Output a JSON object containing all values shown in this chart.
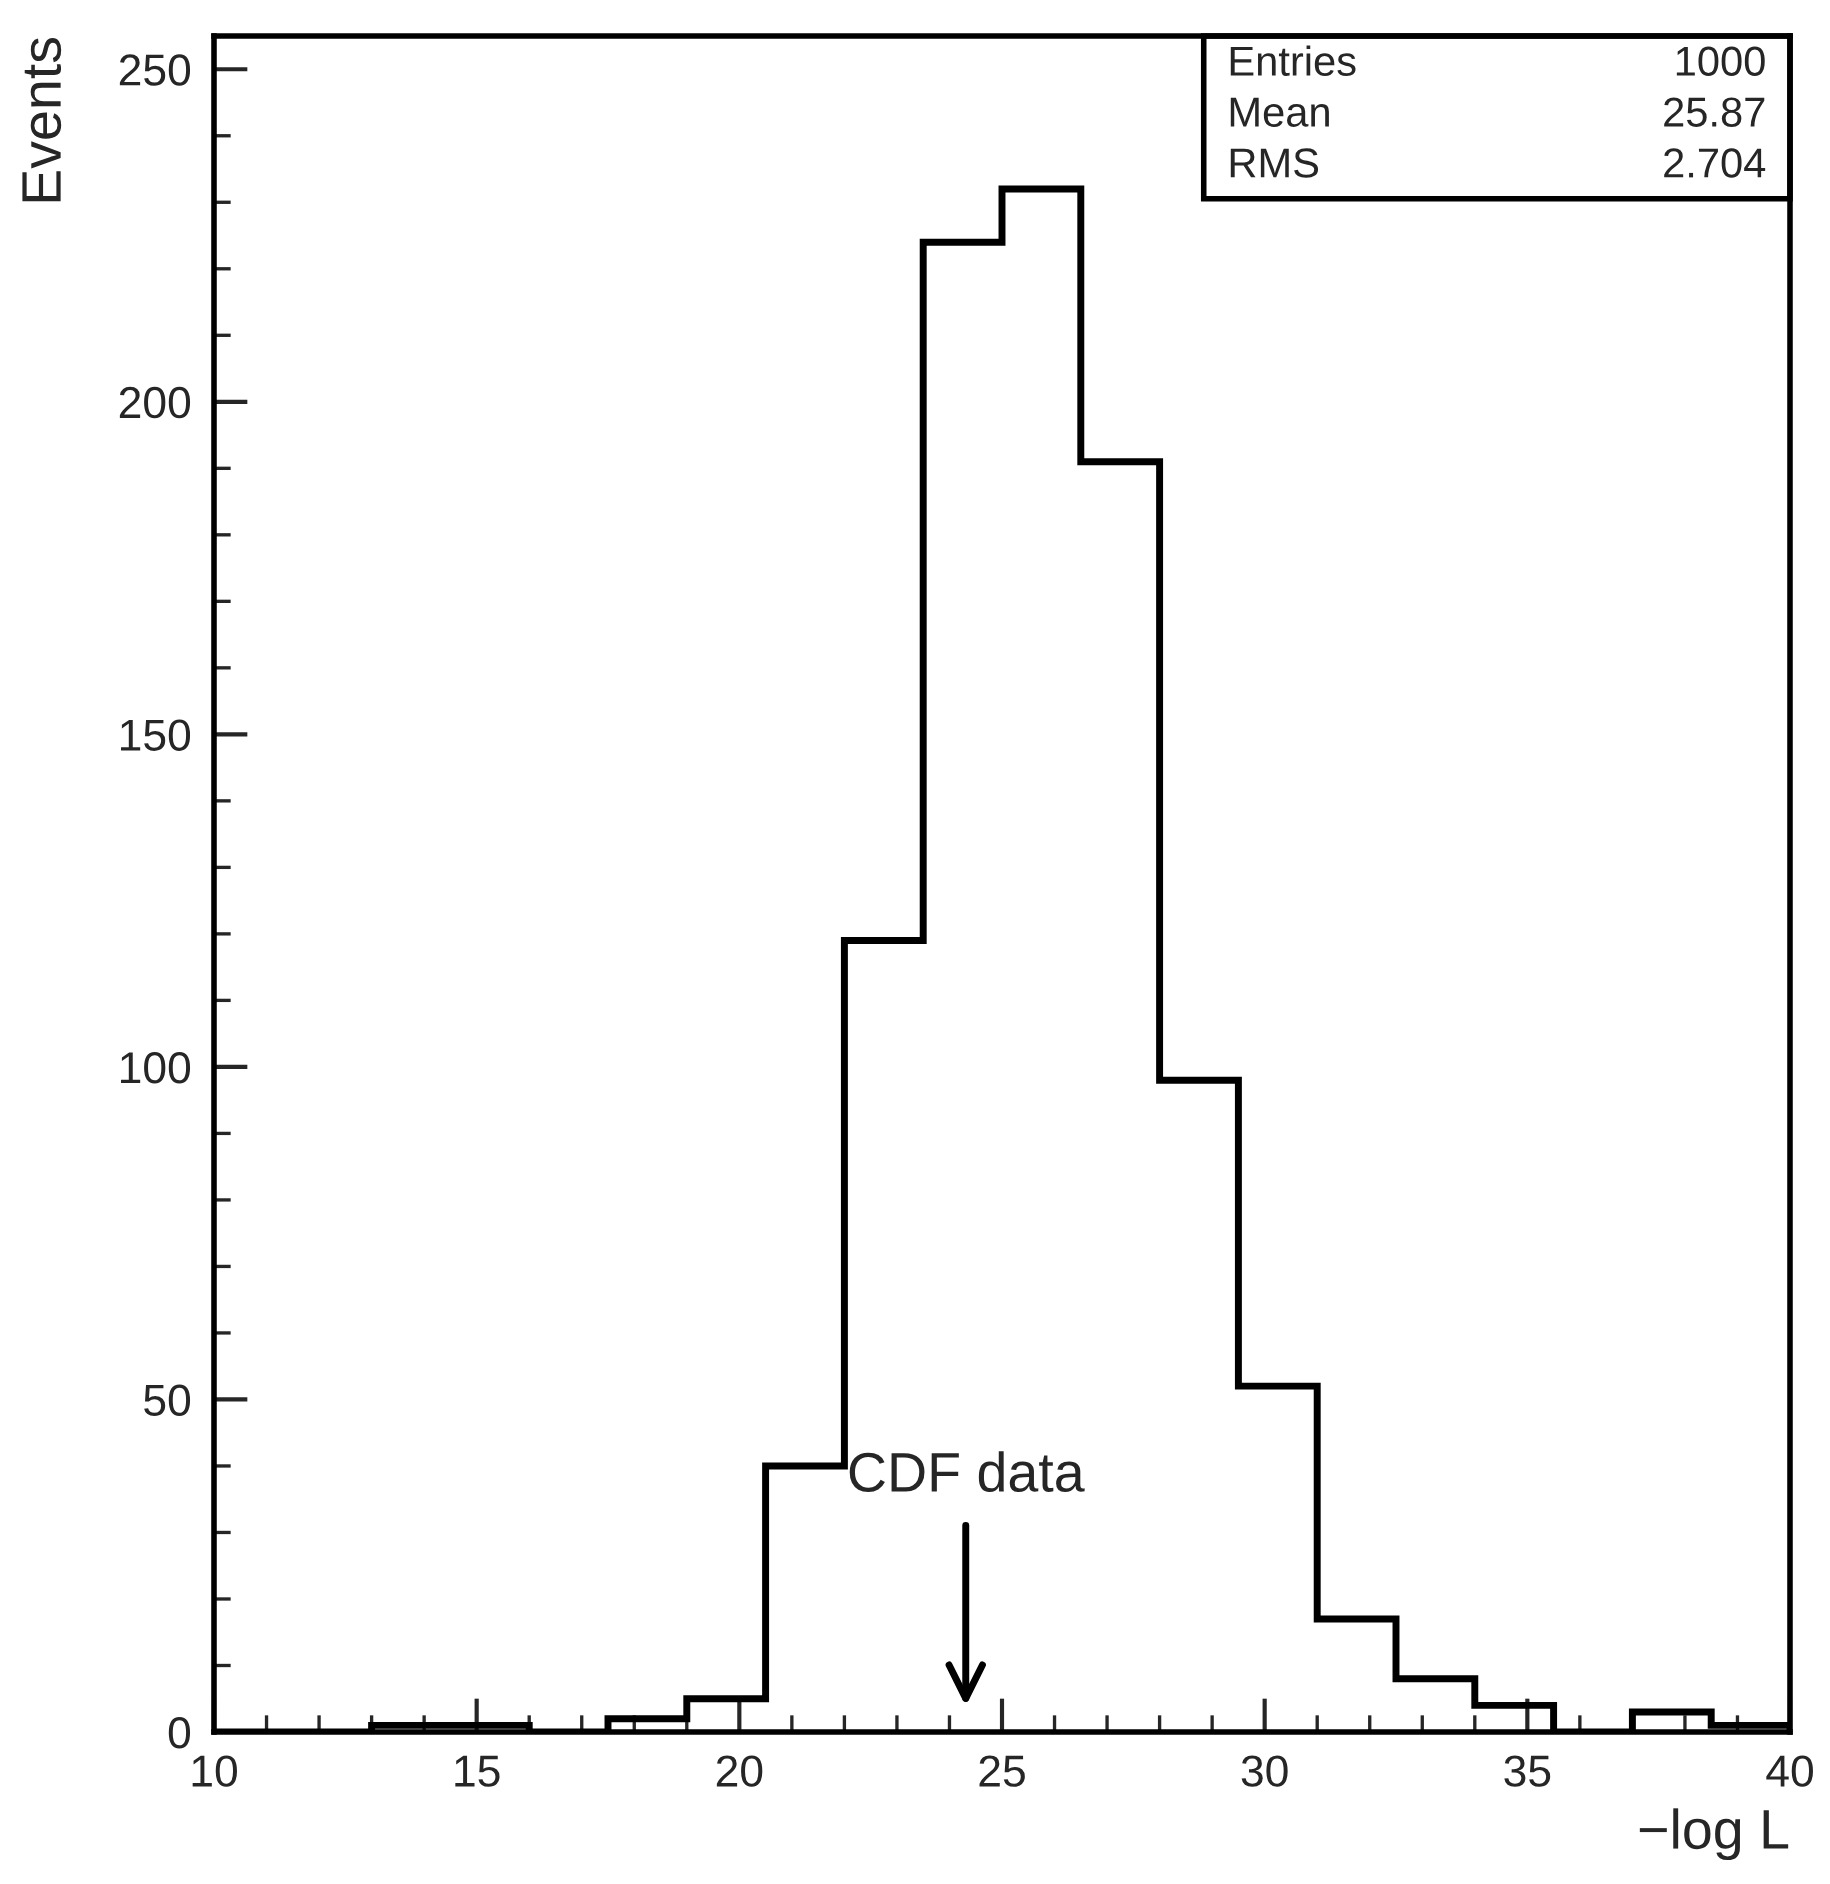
{
  "chart_data": {
    "type": "histogram",
    "xlabel": "−log L",
    "ylabel": "Events",
    "bins": [
      10,
      11.5,
      13,
      14.5,
      16,
      17.5,
      19,
      20.5,
      22,
      23.5,
      25,
      26.5,
      28,
      29.5,
      31,
      32.5,
      34,
      35.5,
      37,
      38.5,
      40
    ],
    "values": [
      0,
      0,
      1,
      1,
      0,
      2,
      5,
      40,
      119,
      224,
      232,
      191,
      98,
      52,
      17,
      8,
      4,
      0,
      3,
      1
    ],
    "color": "#000000",
    "xlim": [
      10,
      40
    ],
    "xticks": [
      10,
      15,
      20,
      25,
      30,
      35,
      40
    ],
    "ylim": [
      0,
      255
    ],
    "yticks": [
      0,
      50,
      100,
      150,
      200,
      250
    ],
    "grid": false,
    "annotations": [
      "CDF data",
      "Entries",
      "1000",
      "Mean",
      "25.87",
      "RMS",
      "2.704"
    ]
  }
}
